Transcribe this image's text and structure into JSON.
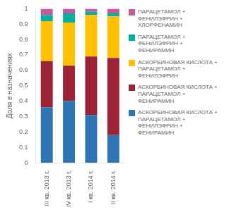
{
  "chart_data": {
    "type": "bar",
    "stacked": true,
    "grid": false,
    "legend": "right",
    "ylabel": "Доля в назначениях",
    "categories": [
      "III кв. 2013 г.",
      "IV кв. 2013 г.",
      "I кв. 2014 г.",
      "II кв. 2014 г."
    ],
    "series": [
      {
        "name": "АСКОРБИНОВАЯ КИСЛОТА +\nПАРАЦЕТАМОЛ +\nФЕНИЛЭФРИН +\nФЕНИРАМИН",
        "color": "#2e75b6",
        "values": [
          0.36,
          0.4,
          0.31,
          0.18
        ]
      },
      {
        "name": "АСКОРБИНОВАЯ КИСЛОТА +\nПАРАЦЕТАМОЛ +\nФЕНИРАМИН",
        "color": "#9b2335",
        "values": [
          0.3,
          0.23,
          0.38,
          0.5
        ]
      },
      {
        "name": "АСКОРБИНОВАЯ КИСЛОТА +\nПАРАЦЕТАМОЛ +\nФЕНИЛЭФРИН",
        "color": "#ffc000",
        "values": [
          0.26,
          0.28,
          0.27,
          0.27
        ]
      },
      {
        "name": "ПАРАЦЕТАМОЛ +\nФЕНИЛЭФРИН +\nФЕНИРАМИН",
        "color": "#00b0a0",
        "values": [
          0.04,
          0.06,
          0.02,
          0.02
        ]
      },
      {
        "name": "ПАРАЦЕТАМОЛ +\nФЕНИЛЭФРИН +\nХЛОРФЕНАМИН",
        "color": "#c55a9b",
        "values": [
          0.04,
          0.03,
          0.02,
          0.03
        ]
      }
    ],
    "ylim": [
      0,
      1
    ],
    "yticks": [
      0,
      0.1,
      0.2,
      0.3,
      0.4,
      0.5,
      0.6,
      0.7,
      0.8,
      0.9,
      1
    ]
  }
}
